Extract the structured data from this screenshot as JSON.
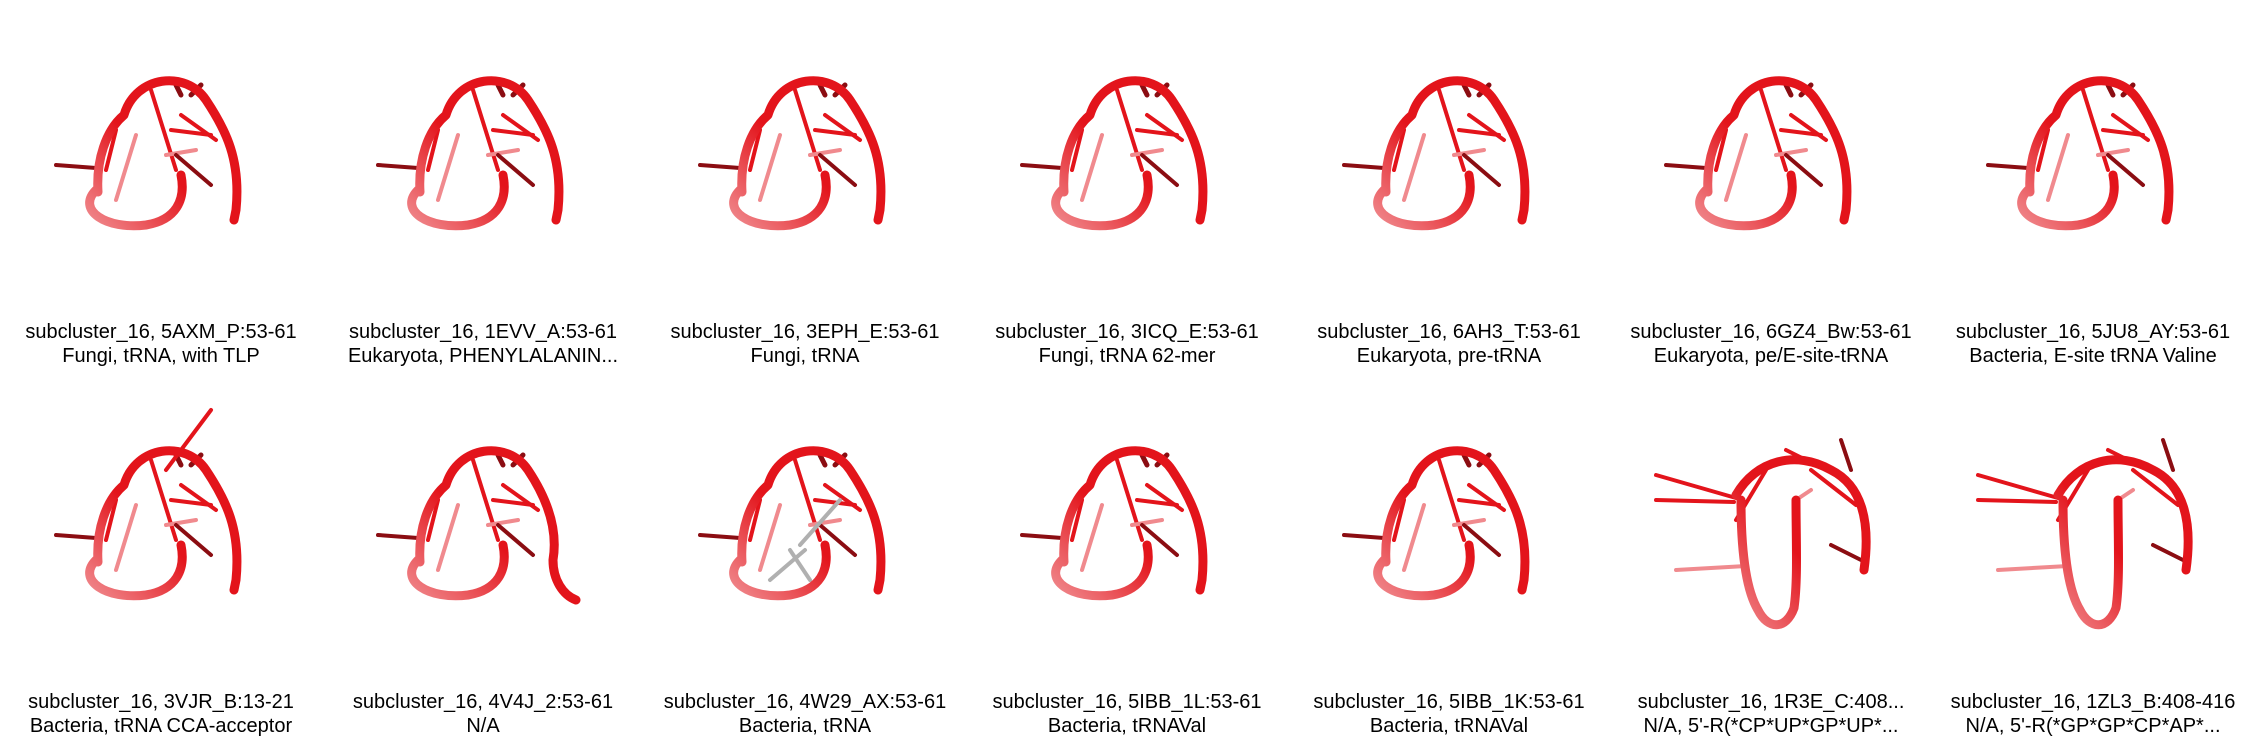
{
  "cells": [
    {
      "title": "subcluster_16, 5AXM_P:53-61",
      "subtitle": "Fungi, tRNA, with TLP",
      "variant": "standard"
    },
    {
      "title": "subcluster_16, 1EVV_A:53-61",
      "subtitle": "Eukaryota, PHENYLALANIN...",
      "variant": "standard"
    },
    {
      "title": "subcluster_16, 3EPH_E:53-61",
      "subtitle": "Fungi, tRNA",
      "variant": "standard"
    },
    {
      "title": "subcluster_16, 3ICQ_E:53-61",
      "subtitle": "Fungi, tRNA 62-mer",
      "variant": "standard"
    },
    {
      "title": "subcluster_16, 6AH3_T:53-61",
      "subtitle": "Eukaryota, pre-tRNA",
      "variant": "standard"
    },
    {
      "title": "subcluster_16, 6GZ4_Bw:53-61",
      "subtitle": "Eukaryota, pe/E-site-tRNA",
      "variant": "standard"
    },
    {
      "title": "subcluster_16, 5JU8_AY:53-61",
      "subtitle": "Bacteria, E-site tRNA Valine",
      "variant": "standard"
    },
    {
      "title": "subcluster_16, 3VJR_B:13-21",
      "subtitle": "Bacteria, tRNA CCA-acceptor",
      "variant": "long-stick"
    },
    {
      "title": "subcluster_16, 4V4J_2:53-61",
      "subtitle": "N/A",
      "variant": "open-tail"
    },
    {
      "title": "subcluster_16, 4W29_AX:53-61",
      "subtitle": "Bacteria, tRNA",
      "variant": "grey"
    },
    {
      "title": "subcluster_16, 5IBB_1L:53-61",
      "subtitle": "Bacteria, tRNAVal",
      "variant": "standard"
    },
    {
      "title": "subcluster_16, 5IBB_1K:53-61",
      "subtitle": "Bacteria, tRNAVal",
      "variant": "standard"
    },
    {
      "title": "subcluster_16, 1R3E_C:408...",
      "subtitle": "N/A, 5'-R(*CP*UP*GP*UP*...",
      "variant": "u-shape"
    },
    {
      "title": "subcluster_16, 1ZL3_B:408-416",
      "subtitle": "N/A, 5'-R(*GP*GP*CP*AP*...",
      "variant": "u-shape"
    }
  ],
  "colors": {
    "backbone": "#e3141b",
    "backbone_light": "#f08a8e",
    "stick_dark": "#8b0d12",
    "grey": "#b0b0b0"
  }
}
